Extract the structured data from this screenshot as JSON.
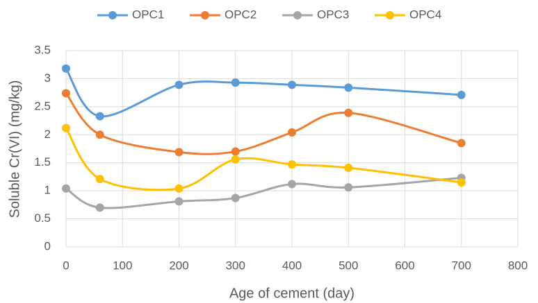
{
  "chart_data": {
    "type": "line",
    "smooth": true,
    "markers": true,
    "x_label": "Age of cement (day)",
    "y_label": "Soluble Cr(VI) (mg/kg)",
    "x": [
      0,
      60,
      200,
      300,
      400,
      500,
      700
    ],
    "series": [
      {
        "name": "OPC1",
        "color": "#5b9bd5",
        "values": [
          3.18,
          2.33,
          2.89,
          2.93,
          2.89,
          2.84,
          2.71
        ]
      },
      {
        "name": "OPC2",
        "color": "#ed7d31",
        "values": [
          2.74,
          2.0,
          1.69,
          1.7,
          2.04,
          2.39,
          1.85
        ]
      },
      {
        "name": "OPC3",
        "color": "#a5a5a5",
        "values": [
          1.04,
          0.7,
          0.81,
          0.87,
          1.12,
          1.06,
          1.23
        ]
      },
      {
        "name": "OPC4",
        "color": "#ffc000",
        "values": [
          2.12,
          1.21,
          1.04,
          1.56,
          1.47,
          1.41,
          1.15
        ]
      }
    ],
    "xlim": [
      0,
      800
    ],
    "xticks": [
      0,
      100,
      200,
      300,
      400,
      500,
      600,
      700,
      800
    ],
    "ylim": [
      0,
      3.5
    ],
    "yticks": [
      0,
      0.5,
      1,
      1.5,
      2,
      2.5,
      3,
      3.5
    ],
    "grid": true,
    "legend": "top"
  }
}
